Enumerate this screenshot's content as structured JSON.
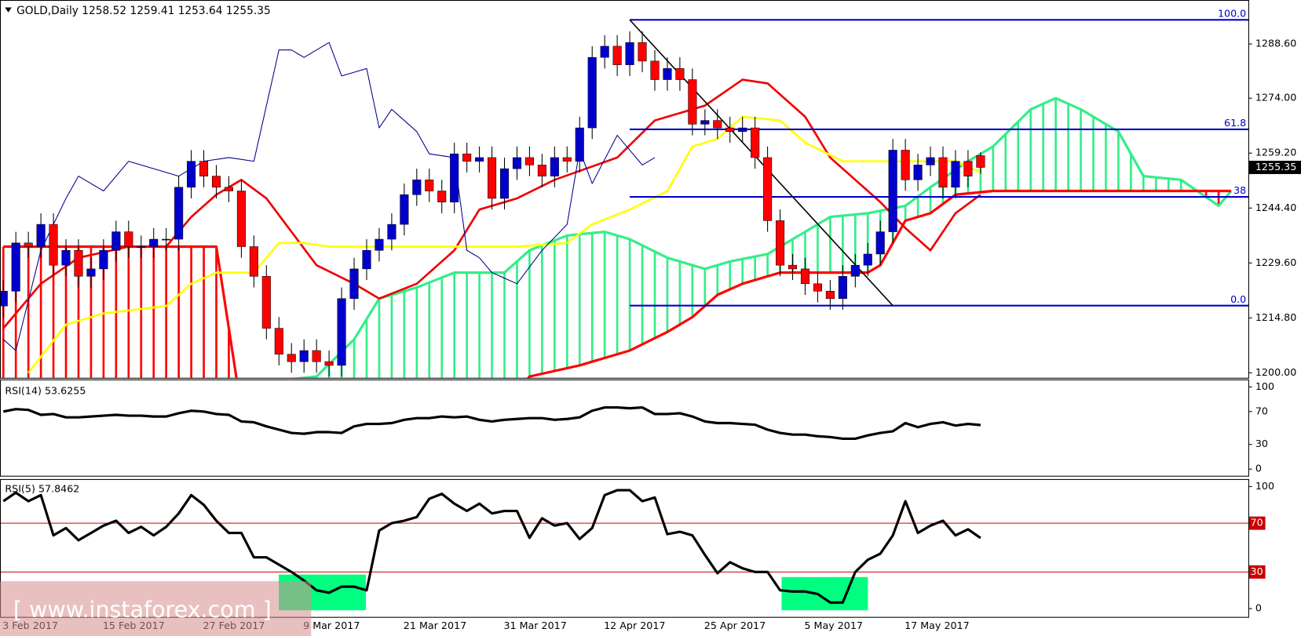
{
  "chart_data": [
    {
      "type": "candlestick",
      "symbol": "GOLD,Daily",
      "categories": [
        "3 Feb 2017",
        null,
        null,
        null,
        null,
        null,
        null,
        null,
        "15 Feb 2017",
        null,
        null,
        null,
        null,
        null,
        null,
        null,
        "27 Feb 2017",
        null,
        null,
        null,
        null,
        null,
        null,
        null,
        "9 Mar 2017",
        null,
        null,
        null,
        null,
        null,
        null,
        null,
        "21 Mar 2017",
        null,
        null,
        null,
        null,
        null,
        null,
        null,
        "31 Mar 2017",
        null,
        null,
        null,
        null,
        null,
        null,
        null,
        "12 Apr 2017",
        null,
        null,
        null,
        null,
        null,
        null,
        null,
        "25 Apr 2017",
        null,
        null,
        null,
        null,
        null,
        null,
        null,
        "5 May 2017",
        null,
        null,
        null,
        null,
        null,
        null,
        null,
        "17 May 2017",
        null,
        null,
        null,
        null,
        null,
        null
      ],
      "open": [
        1218,
        1222,
        1235,
        1234,
        1240,
        1229,
        1233,
        1226,
        1228,
        1233,
        1238,
        1234,
        1234,
        1236,
        1236,
        1250,
        1257,
        1253,
        1250,
        1249,
        1234,
        1226,
        1212,
        1205,
        1203,
        1206,
        1203,
        1202,
        1220,
        1228,
        1233,
        1236,
        1240,
        1248,
        1252,
        1249,
        1246,
        1259,
        1257,
        1258,
        1247,
        1255,
        1258,
        1256,
        1253,
        1258,
        1257,
        1266,
        1285,
        1288,
        1283,
        1289,
        1284,
        1279,
        1282,
        1279,
        1267,
        1268,
        1266,
        1265,
        1266,
        1258,
        1241,
        1229,
        1228,
        1224,
        1222,
        1220,
        1226,
        1229,
        1232,
        1238,
        1260,
        1252,
        1256,
        1258,
        1250,
        1257,
        1258.52
      ],
      "high": [
        1225,
        1238,
        1238,
        1243,
        1243,
        1236,
        1236,
        1231,
        1236,
        1241,
        1241,
        1237,
        1239,
        1239,
        1253,
        1260,
        1260,
        1256,
        1253,
        1252,
        1237,
        1229,
        1215,
        1208,
        1209,
        1209,
        1206,
        1223,
        1231,
        1236,
        1239,
        1243,
        1251,
        1255,
        1255,
        1252,
        1262,
        1262,
        1261,
        1261,
        1258,
        1261,
        1261,
        1259,
        1261,
        1261,
        1269,
        1288,
        1291,
        1291,
        1292,
        1292,
        1287,
        1285,
        1285,
        1282,
        1271,
        1271,
        1269,
        1269,
        1269,
        1261,
        1244,
        1232,
        1231,
        1227,
        1225,
        1229,
        1232,
        1235,
        1241,
        1263,
        1263,
        1259,
        1261,
        1261,
        1260,
        1260,
        1259.41
      ],
      "low": [
        1215,
        1219,
        1231,
        1231,
        1226,
        1226,
        1223,
        1223,
        1225,
        1230,
        1231,
        1231,
        1231,
        1233,
        1233,
        1247,
        1250,
        1247,
        1246,
        1231,
        1223,
        1209,
        1202,
        1200,
        1200,
        1200,
        1199,
        1199,
        1217,
        1225,
        1230,
        1233,
        1237,
        1245,
        1246,
        1243,
        1243,
        1254,
        1254,
        1244,
        1244,
        1252,
        1253,
        1250,
        1250,
        1254,
        1254,
        1263,
        1282,
        1280,
        1280,
        1281,
        1276,
        1276,
        1276,
        1264,
        1264,
        1263,
        1262,
        1262,
        1255,
        1238,
        1226,
        1225,
        1221,
        1219,
        1217,
        1217,
        1223,
        1226,
        1229,
        1235,
        1249,
        1249,
        1253,
        1247,
        1247,
        1250,
        1253.64
      ],
      "close": [
        1222,
        1235,
        1234,
        1240,
        1229,
        1233,
        1226,
        1228,
        1233,
        1238,
        1234,
        1234,
        1236,
        1236,
        1250,
        1257,
        1253,
        1250,
        1249,
        1234,
        1226,
        1212,
        1205,
        1203,
        1206,
        1203,
        1202,
        1220,
        1228,
        1233,
        1236,
        1240,
        1248,
        1252,
        1249,
        1246,
        1259,
        1257,
        1258,
        1247,
        1255,
        1258,
        1256,
        1253,
        1258,
        1257,
        1266,
        1285,
        1288,
        1283,
        1289,
        1284,
        1279,
        1282,
        1279,
        1267,
        1268,
        1266,
        1265,
        1266,
        1258,
        1241,
        1229,
        1228,
        1224,
        1222,
        1220,
        1226,
        1229,
        1232,
        1238,
        1260,
        1252,
        1256,
        1258,
        1250,
        1257,
        1253,
        1255.35
      ],
      "bull_color": "#0000cc",
      "bear_color": "#ff0000",
      "ylim": [
        1198.66,
        1298.67
      ],
      "yticks": [
        {
          "value": 1200,
          "label": "1200.00"
        },
        {
          "value": 1214.8,
          "label": "1214.80"
        },
        {
          "value": 1229.6,
          "label": "1229.60"
        },
        {
          "value": 1244.4,
          "label": "1244.40"
        },
        {
          "value": 1259.2,
          "label": "1259.20"
        },
        {
          "value": 1274,
          "label": "1274.00"
        },
        {
          "value": 1288.6,
          "label": "1288.60"
        }
      ],
      "grid": false,
      "cloud": {
        "bull_color": "#33ee88",
        "bear_color": "#ff0000",
        "span_a": {
          "color": "#33ee88",
          "x": [
            0,
            25,
            28,
            30,
            33,
            36,
            40,
            42,
            45,
            48,
            50,
            53,
            56,
            58,
            61,
            64,
            66,
            69,
            72,
            74,
            77,
            79,
            82,
            84,
            86,
            89,
            91,
            94,
            97,
            98
          ],
          "values": [
            1190,
            1199,
            1209,
            1220,
            1223,
            1227,
            1227,
            1233,
            1237,
            1238,
            1236,
            1231,
            1228,
            1230,
            1232,
            1238,
            1242,
            1243,
            1245,
            1250,
            1257,
            1261,
            1271,
            1274,
            1271,
            1265,
            1253,
            1252,
            1245,
            1249
          ]
        },
        "span_b": {
          "color": "#ff0000",
          "x": [
            0,
            17,
            19,
            41,
            42,
            46,
            50,
            53,
            55,
            57,
            59,
            62,
            66,
            69,
            70,
            72,
            74,
            76,
            79,
            98
          ],
          "values": [
            1234,
            1234,
            1190,
            1195,
            1199,
            1202,
            1206,
            1211,
            1215,
            1221,
            1224,
            1227,
            1227,
            1227,
            1229,
            1241,
            1243,
            1248,
            1249,
            1249
          ]
        }
      },
      "series": [
        {
          "color": "#ee0000",
          "width": 2.5,
          "x": [
            0,
            3,
            6,
            10,
            13,
            15,
            17,
            19,
            21,
            23,
            25,
            28,
            30,
            33,
            36,
            38,
            41,
            44,
            49,
            52,
            56,
            59,
            61,
            64,
            66,
            69,
            70,
            72,
            74,
            76,
            78
          ],
          "values": [
            1212,
            1224,
            1231,
            1234,
            1234,
            1242,
            1248,
            1252,
            1247,
            1238,
            1229,
            1224,
            1220,
            1224,
            1233,
            1244,
            1247,
            1252,
            1258,
            1268,
            1272,
            1279,
            1278,
            1269,
            1258,
            1249,
            1246,
            1239,
            1233,
            1243,
            1248
          ]
        },
        {
          "color": "#ffff00",
          "width": 2.5,
          "x": [
            2,
            5,
            8,
            13,
            15,
            17,
            20,
            22,
            24,
            26,
            36,
            41,
            45,
            47,
            50,
            53,
            55,
            57,
            59,
            62,
            64,
            67,
            76,
            78
          ],
          "values": [
            1200,
            1213,
            1216,
            1218,
            1224,
            1227,
            1227,
            1235,
            1235,
            1234,
            1234,
            1234,
            1235,
            1240,
            1244,
            1249,
            1261,
            1263,
            1269,
            1268,
            1262,
            1257,
            1257,
            1254
          ]
        },
        {
          "color": "#00008b",
          "width": 1,
          "x": [
            0,
            1,
            3,
            5,
            6,
            8,
            10,
            12,
            14,
            16,
            18,
            20,
            22,
            23,
            24,
            26,
            27,
            29,
            30,
            31,
            33,
            34,
            36,
            37,
            38,
            39,
            41,
            43,
            45,
            46,
            47,
            49,
            51,
            52
          ],
          "values": [
            1209,
            1206,
            1233,
            1247,
            1253,
            1249,
            1257,
            1255,
            1253,
            1257,
            1258,
            1257,
            1287,
            1287,
            1285,
            1289,
            1280,
            1282,
            1266,
            1271,
            1265,
            1259,
            1258,
            1233,
            1231,
            1227,
            1224,
            1233,
            1240,
            1260,
            1251,
            1264,
            1256,
            1258
          ]
        }
      ],
      "trendline": {
        "color": "#000000",
        "x": [
          50,
          71
        ],
        "values": [
          1295.1,
          1218.1
        ]
      },
      "fibonacci": {
        "color": "#0000cc",
        "start": 50,
        "levels": [
          {
            "value": 1295.1,
            "label": "100.0"
          },
          {
            "value": 1265.6,
            "label": "61.8"
          },
          {
            "value": 1247.4,
            "label": "38"
          },
          {
            "value": 1218.1,
            "label": "0.0"
          }
        ]
      }
    },
    {
      "type": "line",
      "title": "RSI(14)",
      "color": "#000000",
      "values": [
        70,
        73,
        72,
        66,
        67,
        63,
        63,
        64,
        65,
        66,
        65,
        65,
        64,
        64,
        68,
        71,
        70,
        67,
        66,
        58,
        57,
        52,
        48,
        44,
        43,
        45,
        45,
        44,
        52,
        55,
        55,
        56,
        60,
        62,
        62,
        64,
        63,
        64,
        60,
        58,
        60,
        61,
        62,
        62,
        60,
        61,
        63,
        71,
        75,
        75,
        74,
        75,
        67,
        67,
        68,
        64,
        58,
        56,
        56,
        55,
        54,
        48,
        44,
        42,
        42,
        40,
        39,
        37,
        37,
        41,
        44,
        46,
        56,
        51,
        55,
        57,
        53,
        55,
        53.6255
      ],
      "ylim": [
        0,
        100
      ],
      "yticks": [
        100,
        70,
        30,
        0
      ]
    },
    {
      "type": "line",
      "title": "RSI(5)",
      "color": "#000000",
      "values": [
        88,
        95,
        88,
        93,
        60,
        66,
        56,
        62,
        68,
        72,
        62,
        67,
        60,
        67,
        78,
        93,
        85,
        72,
        62,
        62,
        42,
        42,
        36,
        30,
        23,
        15,
        13,
        18,
        18,
        15,
        64,
        70,
        72,
        75,
        90,
        94,
        86,
        80,
        86,
        78,
        80,
        80,
        58,
        74,
        68,
        70,
        57,
        66,
        93,
        97,
        97,
        88,
        91,
        61,
        63,
        60,
        44,
        29,
        38,
        33,
        30,
        30,
        15,
        14,
        14,
        12,
        5,
        5,
        30,
        40,
        45,
        60,
        88,
        62,
        68,
        72,
        60,
        65,
        57.8462
      ],
      "ylim": [
        0,
        100
      ],
      "yticks": [
        100,
        0
      ],
      "levels": [
        70,
        30
      ],
      "level_color": "#cc0000"
    }
  ],
  "watermark": "[ www.instaforex.com ]"
}
